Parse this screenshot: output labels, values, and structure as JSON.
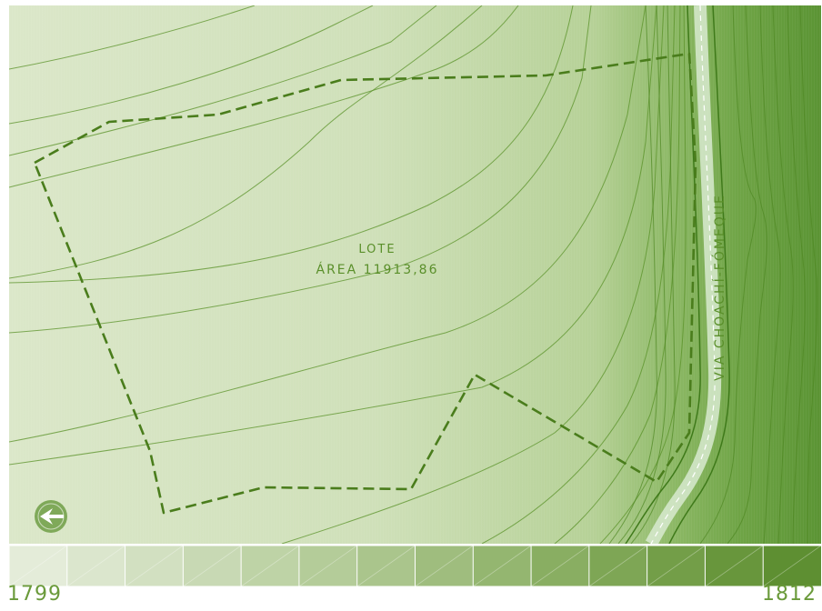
{
  "map": {
    "lot_label": "LOTE",
    "lot_area": "ÁREA 11913,86",
    "road_label": "VIA CHOACHÍ-FÓMEQUE",
    "compass_icon": "compass-arrow-icon"
  },
  "legend": {
    "min_label": "1799",
    "max_label": "1812",
    "colors": [
      "#e4ecd9",
      "#dbe6cd",
      "#d2e0c1",
      "#c8d9b4",
      "#bed3a6",
      "#b4cc99",
      "#aac58c",
      "#9fbd7e",
      "#94b670",
      "#89ae62",
      "#7ea655",
      "#739e48",
      "#68963c",
      "#5e8f32"
    ]
  },
  "colors": {
    "contour": "#5a9128",
    "boundary": "#4a7d1c",
    "background_light": "#dbe8c8",
    "background_dark": "#5c9432"
  }
}
